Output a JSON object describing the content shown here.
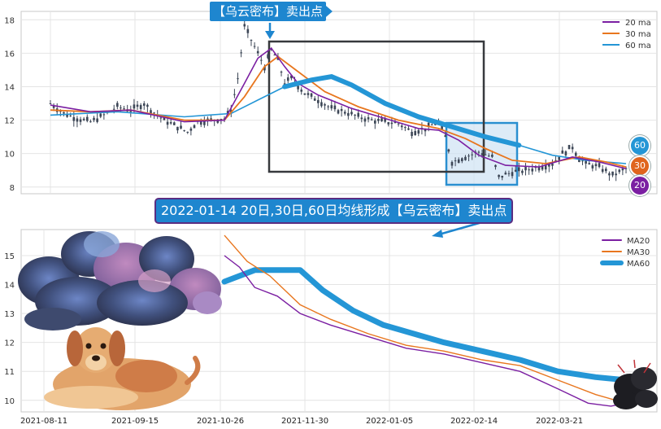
{
  "top_callout": "【乌云密布】卖出点",
  "mid_banner": "2022-01-14 20日,30日,60日均线形成【乌云密布】卖出点",
  "badges": {
    "ma60": "60",
    "ma30": "30",
    "ma20": "20"
  },
  "colors": {
    "ma20": "#7b1fa2",
    "ma30": "#e8761e",
    "ma60": "#2496d6",
    "candle": "#3c4656",
    "box_dark": "#37393d",
    "box_blue": "#2a8fd0",
    "callout": "#1e86cf"
  },
  "chart_data": [
    {
      "type": "line",
      "subtype": "candlestick with moving averages",
      "ylim": [
        7.6,
        18.5
      ],
      "y_ticks": [
        "8",
        "10",
        "12",
        "14",
        "16",
        "18"
      ],
      "legend": {
        "position": "top-right",
        "entries": [
          "20 ma",
          "30 ma",
          "60 ma"
        ]
      },
      "grid": true,
      "price_path": [
        {
          "t": 0,
          "v": 13.0
        },
        {
          "t": 4,
          "v": 12.4
        },
        {
          "t": 8,
          "v": 12.1
        },
        {
          "t": 12,
          "v": 11.9
        },
        {
          "t": 16,
          "v": 12.3
        },
        {
          "t": 20,
          "v": 12.8
        },
        {
          "t": 24,
          "v": 12.6
        },
        {
          "t": 28,
          "v": 13.0
        },
        {
          "t": 30,
          "v": 12.6
        },
        {
          "t": 34,
          "v": 12.0
        },
        {
          "t": 38,
          "v": 11.6
        },
        {
          "t": 41,
          "v": 11.3
        },
        {
          "t": 44,
          "v": 11.9
        },
        {
          "t": 48,
          "v": 12.0
        },
        {
          "t": 52,
          "v": 12.1
        },
        {
          "t": 54,
          "v": 12.6
        },
        {
          "t": 56,
          "v": 14.5
        },
        {
          "t": 58,
          "v": 17.6
        },
        {
          "t": 60,
          "v": 16.8
        },
        {
          "t": 62,
          "v": 16.0
        },
        {
          "t": 64,
          "v": 15.2
        },
        {
          "t": 66,
          "v": 16.2
        },
        {
          "t": 68,
          "v": 15.6
        },
        {
          "t": 70,
          "v": 14.2
        },
        {
          "t": 72,
          "v": 14.5
        },
        {
          "t": 76,
          "v": 13.6
        },
        {
          "t": 80,
          "v": 13.2
        },
        {
          "t": 84,
          "v": 12.7
        },
        {
          "t": 88,
          "v": 12.5
        },
        {
          "t": 92,
          "v": 12.2
        },
        {
          "t": 96,
          "v": 12.0
        },
        {
          "t": 100,
          "v": 11.9
        },
        {
          "t": 104,
          "v": 11.8
        },
        {
          "t": 108,
          "v": 11.3
        },
        {
          "t": 112,
          "v": 11.5
        },
        {
          "t": 116,
          "v": 11.9
        },
        {
          "t": 118,
          "v": 11.0
        },
        {
          "t": 120,
          "v": 9.5
        },
        {
          "t": 124,
          "v": 9.8
        },
        {
          "t": 128,
          "v": 10.1
        },
        {
          "t": 132,
          "v": 9.8
        },
        {
          "t": 134,
          "v": 8.6
        },
        {
          "t": 138,
          "v": 8.9
        },
        {
          "t": 142,
          "v": 9.0
        },
        {
          "t": 146,
          "v": 9.2
        },
        {
          "t": 150,
          "v": 9.4
        },
        {
          "t": 153,
          "v": 10.0
        },
        {
          "t": 156,
          "v": 10.4
        },
        {
          "t": 158,
          "v": 9.7
        },
        {
          "t": 160,
          "v": 9.4
        },
        {
          "t": 164,
          "v": 9.2
        },
        {
          "t": 168,
          "v": 8.7
        },
        {
          "t": 170,
          "v": 8.9
        },
        {
          "t": 172,
          "v": 9.1
        }
      ],
      "ma20": [
        {
          "t": 0,
          "v": 12.9
        },
        {
          "t": 12,
          "v": 12.5
        },
        {
          "t": 24,
          "v": 12.6
        },
        {
          "t": 40,
          "v": 11.9
        },
        {
          "t": 52,
          "v": 12.0
        },
        {
          "t": 58,
          "v": 14.2
        },
        {
          "t": 62,
          "v": 15.7
        },
        {
          "t": 66,
          "v": 16.3
        },
        {
          "t": 70,
          "v": 15.2
        },
        {
          "t": 74,
          "v": 14.2
        },
        {
          "t": 80,
          "v": 13.5
        },
        {
          "t": 90,
          "v": 12.7
        },
        {
          "t": 100,
          "v": 12.1
        },
        {
          "t": 110,
          "v": 11.5
        },
        {
          "t": 116,
          "v": 11.4
        },
        {
          "t": 122,
          "v": 10.8
        },
        {
          "t": 128,
          "v": 9.9
        },
        {
          "t": 136,
          "v": 9.3
        },
        {
          "t": 146,
          "v": 9.2
        },
        {
          "t": 156,
          "v": 9.8
        },
        {
          "t": 164,
          "v": 9.5
        },
        {
          "t": 172,
          "v": 9.1
        }
      ],
      "ma30": [
        {
          "t": 0,
          "v": 12.6
        },
        {
          "t": 12,
          "v": 12.5
        },
        {
          "t": 24,
          "v": 12.6
        },
        {
          "t": 40,
          "v": 12.0
        },
        {
          "t": 52,
          "v": 12.0
        },
        {
          "t": 58,
          "v": 13.4
        },
        {
          "t": 64,
          "v": 15.2
        },
        {
          "t": 68,
          "v": 15.8
        },
        {
          "t": 74,
          "v": 14.9
        },
        {
          "t": 82,
          "v": 13.7
        },
        {
          "t": 92,
          "v": 12.8
        },
        {
          "t": 104,
          "v": 12.0
        },
        {
          "t": 116,
          "v": 11.5
        },
        {
          "t": 124,
          "v": 10.9
        },
        {
          "t": 130,
          "v": 10.3
        },
        {
          "t": 138,
          "v": 9.6
        },
        {
          "t": 148,
          "v": 9.4
        },
        {
          "t": 158,
          "v": 9.8
        },
        {
          "t": 166,
          "v": 9.5
        },
        {
          "t": 172,
          "v": 9.2
        }
      ],
      "ma60": [
        {
          "t": 0,
          "v": 12.3
        },
        {
          "t": 20,
          "v": 12.5
        },
        {
          "t": 40,
          "v": 12.2
        },
        {
          "t": 54,
          "v": 12.4
        },
        {
          "t": 62,
          "v": 13.2
        },
        {
          "t": 70,
          "v": 14.0
        },
        {
          "t": 78,
          "v": 14.4
        },
        {
          "t": 84,
          "v": 14.6
        },
        {
          "t": 90,
          "v": 14.1
        },
        {
          "t": 100,
          "v": 13.0
        },
        {
          "t": 110,
          "v": 12.2
        },
        {
          "t": 120,
          "v": 11.6
        },
        {
          "t": 130,
          "v": 11.0
        },
        {
          "t": 140,
          "v": 10.5
        },
        {
          "t": 150,
          "v": 9.9
        },
        {
          "t": 160,
          "v": 9.6
        },
        {
          "t": 172,
          "v": 9.4
        }
      ]
    },
    {
      "type": "line",
      "ylim": [
        9.6,
        15.9
      ],
      "y_ticks": [
        "10",
        "11",
        "12",
        "13",
        "14",
        "15"
      ],
      "x_ticks": [
        "2021-08-11",
        "2021-09-15",
        "2021-10-26",
        "2021-11-30",
        "2022-01-05",
        "2022-02-14",
        "2022-03-21"
      ],
      "legend": {
        "position": "top-right",
        "entries": [
          "MA20",
          "MA30",
          "MA60"
        ]
      },
      "grid": true,
      "ma20": [
        {
          "t": 62,
          "v": 15.0
        },
        {
          "t": 66,
          "v": 14.6
        },
        {
          "t": 70,
          "v": 13.9
        },
        {
          "t": 76,
          "v": 13.6
        },
        {
          "t": 82,
          "v": 13.0
        },
        {
          "t": 90,
          "v": 12.6
        },
        {
          "t": 100,
          "v": 12.2
        },
        {
          "t": 110,
          "v": 11.8
        },
        {
          "t": 120,
          "v": 11.6
        },
        {
          "t": 130,
          "v": 11.3
        },
        {
          "t": 140,
          "v": 11.0
        },
        {
          "t": 150,
          "v": 10.4
        },
        {
          "t": 158,
          "v": 9.9
        },
        {
          "t": 164,
          "v": 9.8
        },
        {
          "t": 168,
          "v": 9.9
        }
      ],
      "ma30": [
        {
          "t": 62,
          "v": 15.7
        },
        {
          "t": 68,
          "v": 14.8
        },
        {
          "t": 74,
          "v": 14.3
        },
        {
          "t": 82,
          "v": 13.3
        },
        {
          "t": 90,
          "v": 12.8
        },
        {
          "t": 100,
          "v": 12.3
        },
        {
          "t": 110,
          "v": 11.9
        },
        {
          "t": 120,
          "v": 11.7
        },
        {
          "t": 130,
          "v": 11.4
        },
        {
          "t": 140,
          "v": 11.2
        },
        {
          "t": 150,
          "v": 10.7
        },
        {
          "t": 160,
          "v": 10.2
        },
        {
          "t": 168,
          "v": 9.9
        }
      ],
      "ma60": [
        {
          "t": 62,
          "v": 14.1
        },
        {
          "t": 70,
          "v": 14.5
        },
        {
          "t": 78,
          "v": 14.5
        },
        {
          "t": 82,
          "v": 14.5
        },
        {
          "t": 88,
          "v": 13.8
        },
        {
          "t": 96,
          "v": 13.1
        },
        {
          "t": 104,
          "v": 12.6
        },
        {
          "t": 112,
          "v": 12.3
        },
        {
          "t": 120,
          "v": 12.0
        },
        {
          "t": 130,
          "v": 11.7
        },
        {
          "t": 140,
          "v": 11.4
        },
        {
          "t": 150,
          "v": 11.0
        },
        {
          "t": 160,
          "v": 10.8
        },
        {
          "t": 168,
          "v": 10.7
        }
      ]
    }
  ]
}
